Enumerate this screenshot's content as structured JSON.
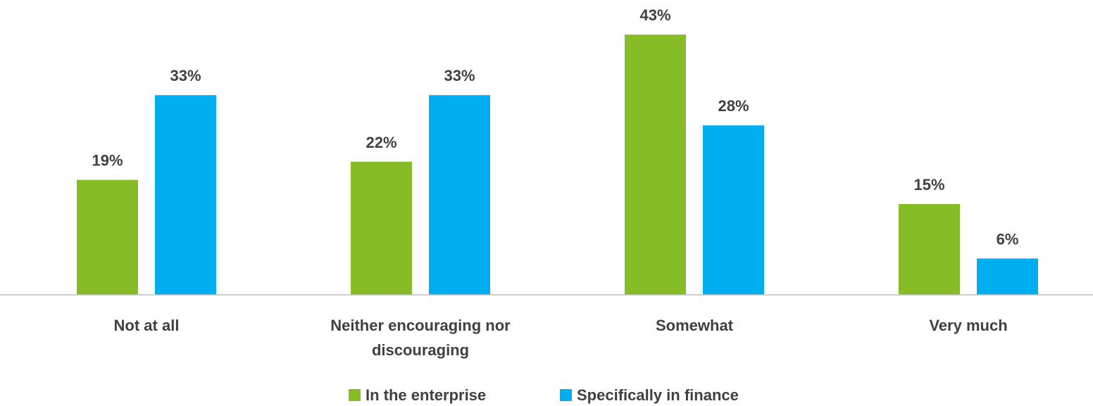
{
  "chart_data": {
    "type": "bar",
    "categories": [
      [
        "Not at all"
      ],
      [
        "Neither encouraging nor",
        "discouraging"
      ],
      [
        "Somewhat"
      ],
      [
        "Very much"
      ]
    ],
    "series": [
      {
        "name": "In the enterprise",
        "color": "#86bc25",
        "values": [
          19,
          22,
          43,
          15
        ]
      },
      {
        "name": "Specifically in finance",
        "color": "#00aeef",
        "values": [
          33,
          33,
          28,
          6
        ]
      }
    ],
    "value_suffix": "%",
    "title": "",
    "xlabel": "",
    "ylabel": "",
    "ylim": [
      0,
      45
    ],
    "grid": false,
    "legend_position": "bottom"
  }
}
